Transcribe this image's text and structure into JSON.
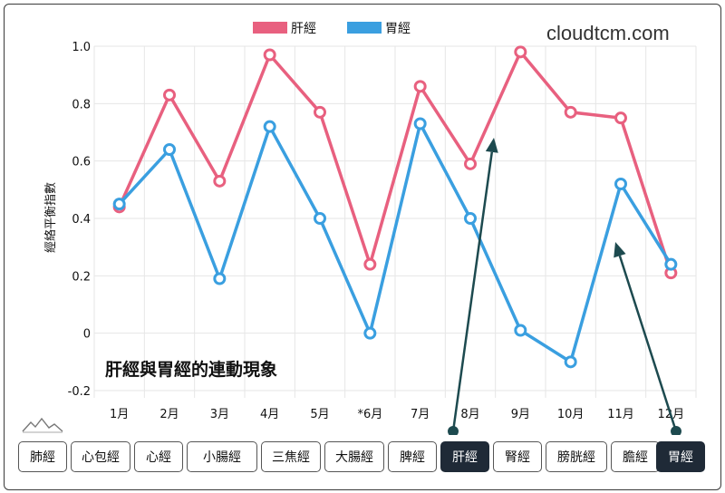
{
  "brand": "cloudtcm.com",
  "annotation": "肝經與胃經的連動現象",
  "colors": {
    "liver": "#e8607f",
    "stomach": "#3a9fe0",
    "arrow": "#1d4a4f",
    "grid": "#e6e6e6",
    "active_button": "#1f2a37"
  },
  "buttons": [
    {
      "label": "肺經",
      "active": false
    },
    {
      "label": "心包經",
      "active": false
    },
    {
      "label": "心經",
      "active": false
    },
    {
      "label": "小腸經",
      "active": false
    },
    {
      "label": "三焦經",
      "active": false
    },
    {
      "label": "大腸經",
      "active": false
    },
    {
      "label": "脾經",
      "active": false
    },
    {
      "label": "肝經",
      "active": true
    },
    {
      "label": "腎經",
      "active": false
    },
    {
      "label": "膀胱經",
      "active": false
    },
    {
      "label": "膽經",
      "active": false
    },
    {
      "label": "胃經",
      "active": true
    }
  ],
  "icons": {
    "mountain": "mountain-line-icon"
  },
  "chart_data": {
    "type": "line",
    "ylabel": "經絡平衡指數",
    "ylim": [
      -0.2,
      1.0
    ],
    "yticks": [
      "1.0",
      "0.8",
      "0.6",
      "0.4",
      "0.2",
      "0",
      "-0.2"
    ],
    "categories": [
      "1月",
      "2月",
      "3月",
      "4月",
      "5月",
      "*6月",
      "7月",
      "8月",
      "9月",
      "10月",
      "11月",
      "12月"
    ],
    "grid": true,
    "legend_position": "top",
    "series": [
      {
        "name": "肝經",
        "color": "#e8607f",
        "values": [
          0.44,
          0.83,
          0.53,
          0.97,
          0.77,
          0.24,
          0.86,
          0.59,
          0.98,
          0.77,
          0.75,
          0.21
        ]
      },
      {
        "name": "胃經",
        "color": "#3a9fe0",
        "values": [
          0.45,
          0.64,
          0.19,
          0.72,
          0.4,
          0.0,
          0.73,
          0.4,
          0.01,
          -0.1,
          0.52,
          0.24
        ]
      }
    ]
  }
}
